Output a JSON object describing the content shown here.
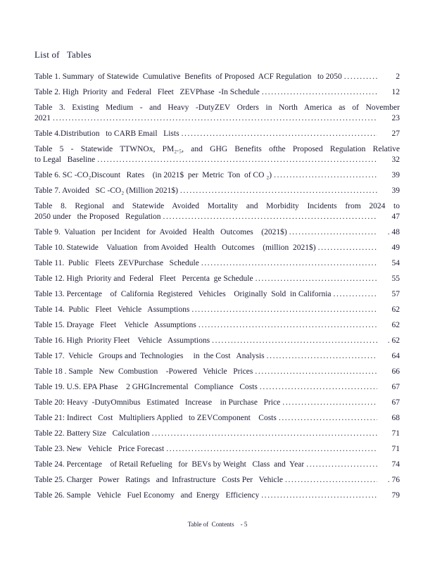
{
  "document": {
    "title": "List of   Tables",
    "footer": "Table of  Contents    - 5",
    "ink_color": "#1b1b38",
    "background_color": "#ffffff"
  },
  "toc": {
    "entries": [
      {
        "text": "Table 1. Summary  of Statewide  Cumulative  Benefits  of Proposed  ACF Regulation   to 2050",
        "page": "2"
      },
      {
        "text": "Table 2. High  Priority  and  Federal   Fleet   ZEVPhase  -In Schedule",
        "page": "12"
      },
      {
        "text": "Table 3.  Existing  Medium - and Heavy  -DutyZEV Orders   in North America  as of November",
        "text2": "2021",
        "page": "23"
      },
      {
        "text": "Table 4.Distribution   to CARB Email   Lists",
        "page": "27"
      },
      {
        "text": "Table  5 - Statewide  TTWNOx,  PM₂.₅, and GHG  Benefits  ofthe  Proposed  Regulation  Relative",
        "text2": "to Legal   Baseline",
        "page": "32"
      },
      {
        "text": "Table 6. SC -CO₂Discount   Rates    (in 2021$  per  Metric  Ton  of CO ₂)",
        "page": "39"
      },
      {
        "text": "Table 7. Avoided   SC -CO₂ (Million 2021$)",
        "page": "39"
      },
      {
        "text": "Table 8. Regional  and  Statewide  Avoided  Mortality and  Morbidity Incidents  from 2024  to",
        "text2": "2050 under   the Proposed   Regulation",
        "page": "47"
      },
      {
        "text": "Table 9.  Valuation   per Incident   for  Avoided   Health   Outcomes    (2021$)",
        "page": ". 48"
      },
      {
        "text": "Table 10. Statewide    Valuation   from Avoided   Health   Outcomes    (million  2021$)",
        "page": "49"
      },
      {
        "text": "Table 11.  Public   Fleets  ZEVPurchase   Schedule",
        "page": "54"
      },
      {
        "text": "Table 12. High  Priority and  Federal   Fleet   Percenta  ge Schedule",
        "page": "55"
      },
      {
        "text": "Table 13. Percentage    of  California  Registered   Vehicles    Originally  Sold  in California",
        "page": "57"
      },
      {
        "text": "Table 14.  Public   Fleet   Vehicle   Assumptions",
        "page": "62"
      },
      {
        "text": "Table 15. Drayage   Fleet    Vehicle   Assumptions",
        "page": "62"
      },
      {
        "text": "Table 16. High  Priority Fleet    Vehicle   Assumptions",
        "page": ". 62"
      },
      {
        "text": "Table 17.  Vehicle   Groups and  Technologies     in  the Cost   Analysis",
        "page": "64"
      },
      {
        "text": "Table 18 . Sample   New  Combustion    -Powered   Vehicle   Prices",
        "page": "66"
      },
      {
        "text": "Table 19. U.S. EPA Phase    2 GHGIncremental   Compliance   Costs",
        "page": "67"
      },
      {
        "text": "Table 20: Heavy  -DutyOmnibus   Estimated   Increase    in Purchase   Price",
        "page": "67"
      },
      {
        "text": "Table 21: Indirect   Cost   Multipliers Applied   to ZEVComponent    Costs",
        "page": "68"
      },
      {
        "text": "Table 22. Battery Size   Calculation",
        "page": "71"
      },
      {
        "text": "Table 23. New   Vehicle   Price Forecast",
        "page": "71"
      },
      {
        "text": "Table 24. Percentage    of Retail Refueling   for  BEVs by Weight   Class  and  Year",
        "page": "74"
      },
      {
        "text": "Table 25. Charger   Power   Ratings   and  Infrastructure   Costs Per   Vehicle",
        "page": ". 76"
      },
      {
        "text": "Table 26. Sample   Vehicle   Fuel Economy   and  Energy   Efficiency",
        "page": "79"
      }
    ]
  }
}
